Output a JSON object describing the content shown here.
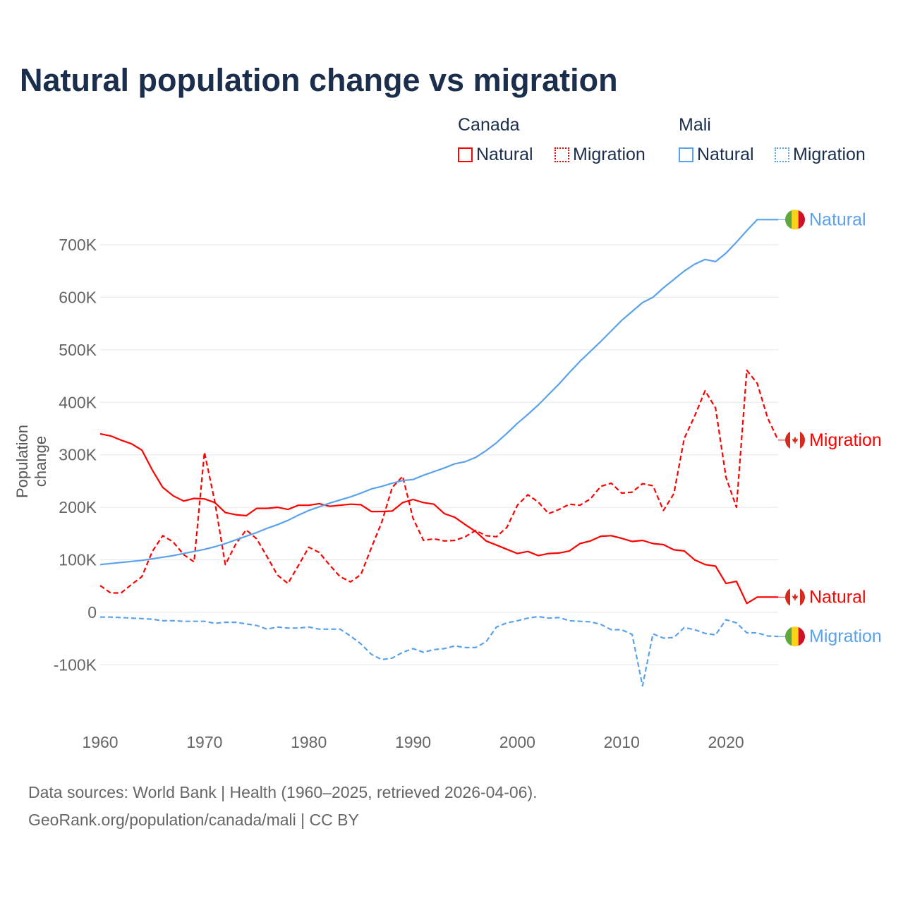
{
  "colors": {
    "canada": "#ff0000",
    "mali": "#5aa2ec",
    "title": "#1b2f4d"
  },
  "chart_data": {
    "type": "line",
    "title": "Natural population change vs migration",
    "ylabel": "Population change",
    "xlabel": "",
    "ylim": [
      -170000,
      790000
    ],
    "xlim": [
      1960,
      2025
    ],
    "y_ticks": [
      {
        "v": -100000,
        "label": "-100K"
      },
      {
        "v": 0,
        "label": "0"
      },
      {
        "v": 100000,
        "label": "100K"
      },
      {
        "v": 200000,
        "label": "200K"
      },
      {
        "v": 300000,
        "label": "300K"
      },
      {
        "v": 400000,
        "label": "400K"
      },
      {
        "v": 500000,
        "label": "500K"
      },
      {
        "v": 600000,
        "label": "600K"
      },
      {
        "v": 700000,
        "label": "700K"
      }
    ],
    "x_ticks": [
      1960,
      1970,
      1980,
      1990,
      2000,
      2010,
      2020
    ],
    "legend": {
      "groups": [
        {
          "name": "Canada",
          "items": [
            "Natural",
            "Migration"
          ]
        },
        {
          "name": "Mali",
          "items": [
            "Natural",
            "Migration"
          ]
        }
      ],
      "placement": "top-right"
    },
    "x_start": 1960,
    "series": [
      {
        "country": "Canada",
        "name": "Natural",
        "end_label": "Natural",
        "color": "#ff0000",
        "dash": false,
        "values_k": [
          340,
          336,
          328,
          321,
          309,
          271,
          238,
          222,
          212,
          217,
          216,
          209,
          190,
          186,
          184,
          198,
          198,
          200,
          196,
          204,
          204,
          207,
          202,
          204,
          206,
          205,
          192,
          192,
          193,
          209,
          215,
          209,
          206,
          188,
          181,
          167,
          154,
          136,
          128,
          120,
          112,
          116,
          108,
          112,
          113,
          117,
          131,
          136,
          145,
          146,
          141,
          135,
          137,
          131,
          129,
          119,
          117,
          100,
          91,
          88,
          55,
          59,
          17,
          29,
          29,
          29
        ]
      },
      {
        "country": "Canada",
        "name": "Migration",
        "end_label": "Migration",
        "color": "#ff0000",
        "dash": true,
        "values_k": [
          51,
          37,
          37,
          53,
          68,
          116,
          146,
          134,
          110,
          96,
          305,
          210,
          91,
          130,
          157,
          140,
          106,
          71,
          55,
          89,
          124,
          114,
          90,
          68,
          58,
          72,
          123,
          172,
          238,
          259,
          179,
          137,
          140,
          136,
          137,
          144,
          156,
          146,
          144,
          162,
          204,
          224,
          210,
          188,
          196,
          206,
          204,
          216,
          240,
          246,
          227,
          229,
          245,
          241,
          194,
          226,
          331,
          374,
          422,
          389,
          257,
          200,
          461,
          436,
          370,
          328
        ]
      },
      {
        "country": "Mali",
        "name": "Natural",
        "end_label": "Natural",
        "color": "#5aa2ec",
        "dash": false,
        "values_k": [
          91,
          93,
          95,
          97,
          99,
          102,
          105,
          108,
          112,
          116,
          120,
          125,
          131,
          138,
          145,
          152,
          160,
          167,
          175,
          185,
          194,
          201,
          208,
          214,
          220,
          227,
          235,
          240,
          246,
          251,
          253,
          261,
          268,
          275,
          283,
          287,
          295,
          308,
          323,
          341,
          360,
          377,
          395,
          415,
          435,
          457,
          478,
          497,
          516,
          536,
          556,
          573,
          590,
          600,
          618,
          634,
          650,
          663,
          672,
          668,
          684,
          705,
          727,
          748,
          748,
          748
        ]
      },
      {
        "country": "Mali",
        "name": "Migration",
        "end_label": "Migration",
        "color": "#5aa2ec",
        "dash": true,
        "values_k": [
          -9,
          -9,
          -10,
          -11,
          -12,
          -13,
          -16,
          -16,
          -17,
          -17,
          -17,
          -21,
          -19,
          -19,
          -22,
          -25,
          -32,
          -28,
          -30,
          -30,
          -28,
          -32,
          -32,
          -32,
          -45,
          -60,
          -80,
          -90,
          -87,
          -76,
          -69,
          -76,
          -71,
          -69,
          -64,
          -67,
          -67,
          -56,
          -28,
          -20,
          -16,
          -11,
          -8,
          -11,
          -10,
          -16,
          -17,
          -18,
          -23,
          -33,
          -33,
          -42,
          -140,
          -41,
          -49,
          -48,
          -29,
          -33,
          -40,
          -43,
          -14,
          -20,
          -39,
          -39,
          -45,
          -46
        ]
      }
    ]
  },
  "legend": {
    "canada": "Canada",
    "mali": "Mali",
    "natural": "Natural",
    "migration": "Migration"
  },
  "footer": {
    "line1": "Data sources: World Bank | Health (1960–2025, retrieved 2026-04-06).",
    "line2": "GeoRank.org/population/canada/mali | CC BY"
  }
}
